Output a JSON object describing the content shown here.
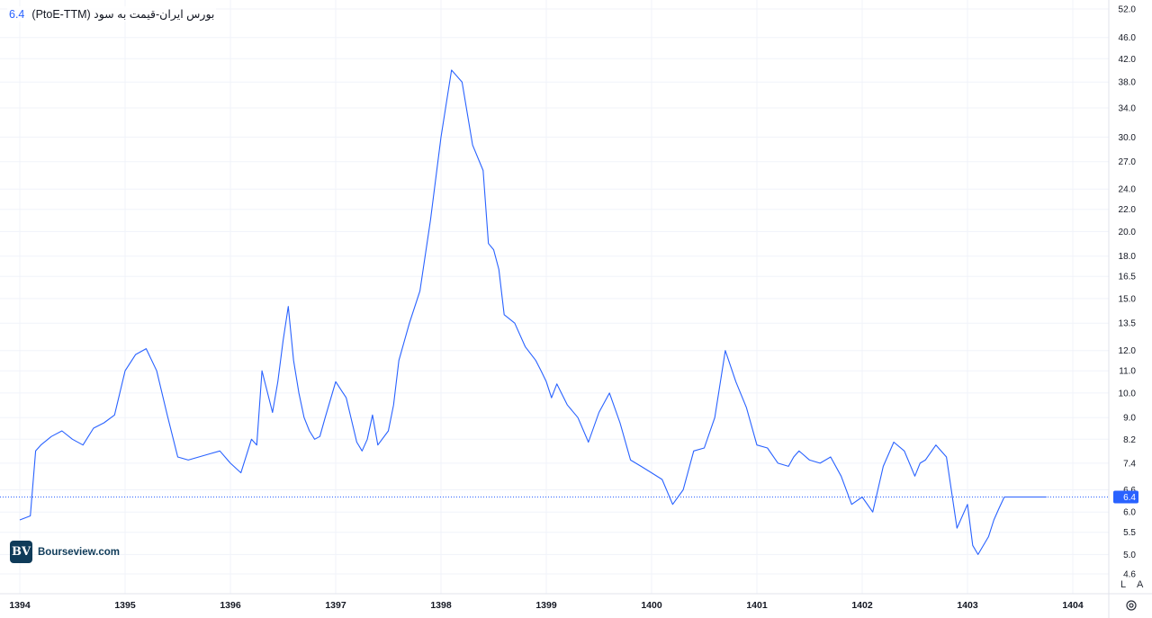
{
  "legend": {
    "title": "بورس ایران-قیمت به سود (PtoE-TTM)",
    "value": "6.4"
  },
  "watermark": {
    "mark": "BV",
    "name": "Bourseview.com"
  },
  "controls": {
    "log_label": "L",
    "auto_label": "A",
    "settings_icon": "gear-icon"
  },
  "colors": {
    "line": "#2962ff",
    "grid": "#f0f3fa",
    "last_label_bg": "#2962ff"
  },
  "chart_data": {
    "type": "line",
    "title": "بورس ایران-قیمت به سود (PtoE-TTM)",
    "y_scale": "log",
    "ylim": [
      4.6,
      52
    ],
    "xlim": [
      1394.0,
      1404.4
    ],
    "y_ticks": [
      "52.0",
      "46.0",
      "42.0",
      "38.0",
      "34.0",
      "30.0",
      "27.0",
      "24.0",
      "22.0",
      "20.0",
      "18.0",
      "16.5",
      "15.0",
      "13.5",
      "12.0",
      "11.0",
      "10.0",
      "9.0",
      "8.2",
      "7.4",
      "6.6",
      "6.0",
      "5.5",
      "5.0",
      "4.6"
    ],
    "x_ticks": [
      "1394",
      "1395",
      "1396",
      "1397",
      "1398",
      "1399",
      "1400",
      "1401",
      "1402",
      "1403",
      "1404"
    ],
    "last_value": 6.4,
    "series": [
      {
        "x": [
          1394.0,
          1394.1,
          1394.15,
          1394.2,
          1394.3,
          1394.4,
          1394.5,
          1394.6,
          1394.7,
          1394.8,
          1394.9,
          1395.0,
          1395.1,
          1395.2,
          1395.3,
          1395.4,
          1395.5,
          1395.6,
          1395.7,
          1395.8,
          1395.9,
          1396.0,
          1396.1,
          1396.2,
          1396.25,
          1396.3,
          1396.4,
          1396.45,
          1396.5,
          1396.55,
          1396.6,
          1396.65,
          1396.7,
          1396.75,
          1396.8,
          1396.85,
          1396.9,
          1397.0,
          1397.1,
          1397.2,
          1397.25,
          1397.3,
          1397.35,
          1397.4,
          1397.5,
          1397.55,
          1397.6,
          1397.7,
          1397.8,
          1397.9,
          1398.0,
          1398.1,
          1398.2,
          1398.3,
          1398.4,
          1398.45,
          1398.5,
          1398.55,
          1398.6,
          1398.7,
          1398.8,
          1398.9,
          1398.95,
          1399.0,
          1399.05,
          1399.1,
          1399.2,
          1399.3,
          1399.4,
          1399.5,
          1399.6,
          1399.7,
          1399.8,
          1399.9,
          1400.0,
          1400.1,
          1400.2,
          1400.3,
          1400.4,
          1400.5,
          1400.6,
          1400.7,
          1400.8,
          1400.9,
          1401.0,
          1401.1,
          1401.2,
          1401.3,
          1401.35,
          1401.4,
          1401.5,
          1401.6,
          1401.7,
          1401.8,
          1401.9,
          1402.0,
          1402.1,
          1402.2,
          1402.3,
          1402.4,
          1402.5,
          1402.55,
          1402.6,
          1402.7,
          1402.8,
          1402.9,
          1403.0,
          1403.05,
          1403.1,
          1403.2,
          1403.25,
          1403.3,
          1403.35,
          1403.4,
          1403.5,
          1403.55,
          1403.6,
          1403.65,
          1403.7,
          1403.75
        ],
        "y": [
          5.8,
          5.9,
          7.8,
          8.0,
          8.3,
          8.5,
          8.2,
          8.0,
          8.6,
          8.8,
          9.1,
          11.0,
          11.8,
          12.1,
          11.0,
          9.1,
          7.6,
          7.5,
          7.6,
          7.7,
          7.8,
          7.4,
          7.1,
          8.2,
          8.0,
          11.0,
          9.2,
          10.5,
          12.5,
          14.5,
          11.5,
          10.0,
          9.0,
          8.5,
          8.2,
          8.3,
          9.0,
          10.5,
          9.8,
          8.1,
          7.8,
          8.2,
          9.1,
          8.0,
          8.5,
          9.5,
          11.5,
          13.5,
          15.5,
          21.0,
          30.0,
          40.0,
          38.0,
          29.0,
          26.0,
          19.0,
          18.5,
          17.0,
          14.0,
          13.5,
          12.2,
          11.5,
          11.0,
          10.5,
          9.8,
          10.4,
          9.5,
          9.0,
          8.1,
          9.2,
          10.0,
          8.8,
          7.5,
          7.3,
          7.1,
          6.9,
          6.2,
          6.6,
          7.8,
          7.9,
          9.0,
          12.0,
          10.5,
          9.4,
          8.0,
          7.9,
          7.4,
          7.3,
          7.6,
          7.8,
          7.5,
          7.4,
          7.6,
          7.0,
          6.2,
          6.4,
          6.0,
          7.3,
          8.1,
          7.8,
          7.0,
          7.4,
          7.5,
          8.0,
          7.6,
          5.6,
          6.2,
          5.2,
          5.0,
          5.4,
          5.8,
          6.1,
          6.4,
          6.4,
          6.4,
          6.4,
          6.4,
          6.4,
          6.4,
          6.4
        ]
      }
    ]
  }
}
